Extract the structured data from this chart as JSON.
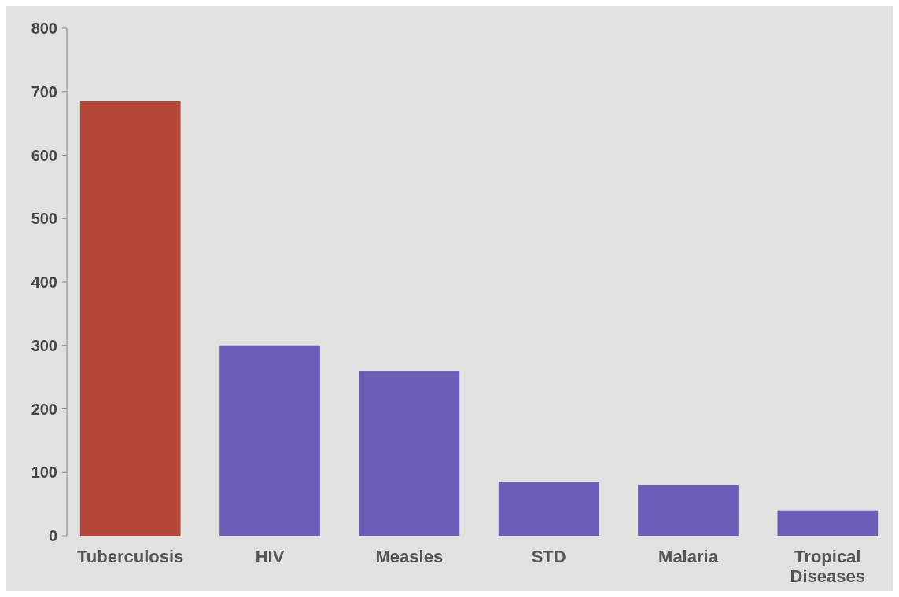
{
  "chart_data": {
    "type": "bar",
    "categories": [
      "Tuberculosis",
      "HIV",
      "Measles",
      "STD",
      "Malaria",
      "Tropical Diseases"
    ],
    "values": [
      685,
      300,
      260,
      85,
      80,
      40
    ],
    "colors": [
      "#b5473a",
      "#6a5fb8",
      "#6a5fb8",
      "#6a5fb8",
      "#6a5fb8",
      "#6a5fb8"
    ],
    "ylim": [
      0,
      800
    ],
    "yticks": [
      0,
      100,
      200,
      300,
      400,
      500,
      600,
      700,
      800
    ]
  }
}
